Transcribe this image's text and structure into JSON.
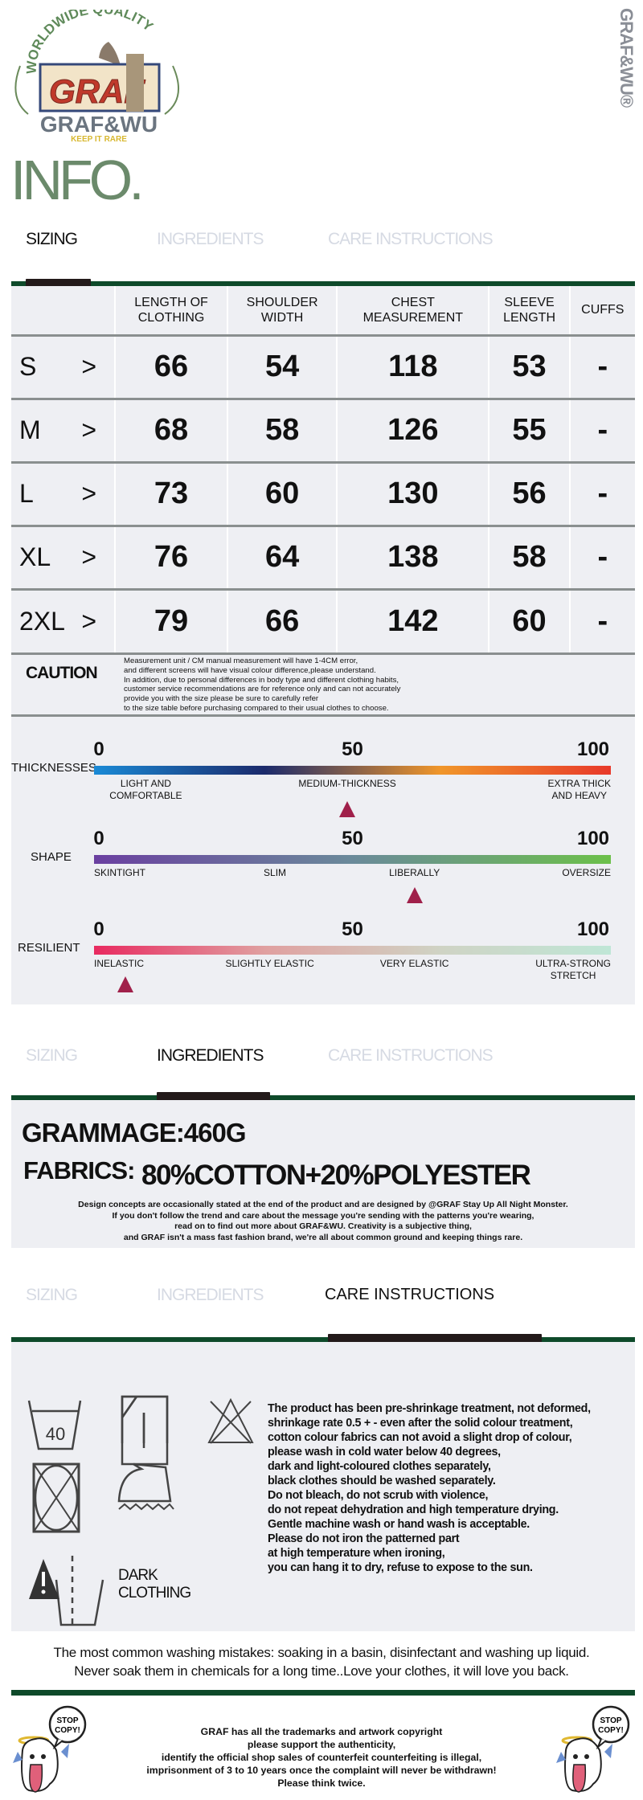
{
  "brand": {
    "logo_arc_text": "WORLDWIDE QUALITY",
    "logo_box_text": "GRAF",
    "logo_name": "GRAF&WU",
    "logo_tagline": "KEEP IT RARE",
    "vertical_mark": "GRAF&WU®",
    "page_title": "INFO."
  },
  "tabs": [
    "SIZING",
    "INGREDIENTS",
    "CARE INSTRUCTIONS"
  ],
  "sizing": {
    "headers": [
      [
        "LENGTH OF",
        "CLOTHING"
      ],
      [
        "SHOULDER",
        "WIDTH"
      ],
      [
        "CHEST",
        "MEASUREMENT"
      ],
      [
        "SLEEVE",
        "LENGTH"
      ],
      [
        "CUFFS"
      ]
    ],
    "arrow": ">",
    "rows": [
      {
        "size": "S",
        "values": [
          "66",
          "54",
          "118",
          "53",
          "-"
        ]
      },
      {
        "size": "M",
        "values": [
          "68",
          "58",
          "126",
          "55",
          "-"
        ]
      },
      {
        "size": "L",
        "values": [
          "73",
          "60",
          "130",
          "56",
          "-"
        ]
      },
      {
        "size": "XL",
        "values": [
          "76",
          "64",
          "138",
          "58",
          "-"
        ]
      },
      {
        "size": "2XL",
        "values": [
          "79",
          "66",
          "142",
          "60",
          "-"
        ]
      }
    ],
    "caution_label": "CAUTION",
    "caution_lines": [
      "Measurement unit / CM manual measurement will have 1-4CM error,",
      "and different screens will have visual colour difference,please understand.",
      "In addition, due to personal differences in body type and different clothing habits,",
      "customer service recommendations are for reference only and can not accurately",
      "provide you with the size please be sure to carefully refer",
      "to the size table before purchasing compared to their usual clothes to choose."
    ]
  },
  "scales": [
    {
      "name": "THICKNESSES",
      "ticks": [
        "0",
        "50",
        "100"
      ],
      "labels": [
        "LIGHT AND\nCOMFORTABLE",
        "MEDIUM-THICKNESS",
        "EXTRA THICK\nAND HEAVY"
      ],
      "marker_value": 49,
      "colors": [
        "#1a8ad6",
        "#1b2a6b",
        "#f0962a",
        "#e8392a"
      ]
    },
    {
      "name": "SHAPE",
      "ticks": [
        "0",
        "50",
        "100"
      ],
      "labels": [
        "SKINTIGHT",
        "SLIM",
        "LIBERALLY",
        "OVERSIZE"
      ],
      "marker_value": 62,
      "colors": [
        "#6a3fa0",
        "#6a8a9a",
        "#6cc04a"
      ]
    },
    {
      "name": "RESILIENT",
      "ticks": [
        "0",
        "50",
        "100"
      ],
      "labels": [
        "INELASTIC",
        "SLIGHTLY ELASTIC",
        "VERY ELASTIC",
        "ULTRA-STRONG\nSTRETCH"
      ],
      "marker_value": 6,
      "colors": [
        "#e82a60",
        "#e0a0a0",
        "#cfd3c4",
        "#bfe6d6"
      ]
    }
  ],
  "ingredients": {
    "grammage": "GRAMMAGE:460G",
    "fabrics_label": "FABRICS:",
    "fabrics_value": "80%COTTON+20%POLYESTER",
    "design_lines": [
      "Design concepts are occasionally stated at the end of the product and are designed by @GRAF Stay Up All Night Monster.",
      "If you don't follow the trend and care about the message you're sending with the patterns you're wearing,",
      "read on to find out more about GRAF&WU. Creativity is a subjective thing,",
      "and GRAF isn't a mass fast fashion brand, we're all about common ground and keeping things rare."
    ]
  },
  "care": {
    "wash_temp": "40",
    "dark_label": [
      "DARK",
      "CLOTHING"
    ],
    "icons": [
      "wash-40-icon",
      "dry-flat-icon",
      "no-bleach-icon",
      "no-tumble-dry-icon",
      "iron-icon",
      "dark-clothing-warning-icon"
    ],
    "text_lines": [
      "The product has been pre-shrinkage treatment, not deformed,",
      "shrinkage rate 0.5 + - even after the solid colour treatment,",
      "cotton colour fabrics can not avoid a slight drop of colour,",
      "please wash in cold water below 40 degrees,",
      "dark and light-coloured clothes separately,",
      "black clothes should be washed separately.",
      "Do not bleach, do not scrub with violence,",
      "do not repeat dehydration and high temperature drying.",
      "Gentle machine wash or hand wash is acceptable.",
      "Please do not iron the patterned part",
      "at high temperature when ironing,",
      "you can hang it to dry, refuse to expose to the sun."
    ],
    "mistakes": [
      "The most common washing mistakes: soaking in a basin, disinfectant and washing up liquid.",
      "Never soak them in chemicals for a long time..Love your clothes, it will love you back."
    ]
  },
  "footer": {
    "stop_copy": [
      "STOP",
      "COPY!"
    ],
    "lines": [
      "GRAF has all the trademarks and artwork copyright",
      "please support the authenticity,",
      "identify the official shop sales of counterfeit counterfeiting is illegal,",
      "imprisonment of 3 to 10 years once the complaint will never be withdrawn!",
      "Please think twice."
    ]
  },
  "colors": {
    "accent_green": "#0e4a2a",
    "panel": "#eeeff3",
    "title_green": "#6b8a6b",
    "marker": "#a0204a"
  }
}
